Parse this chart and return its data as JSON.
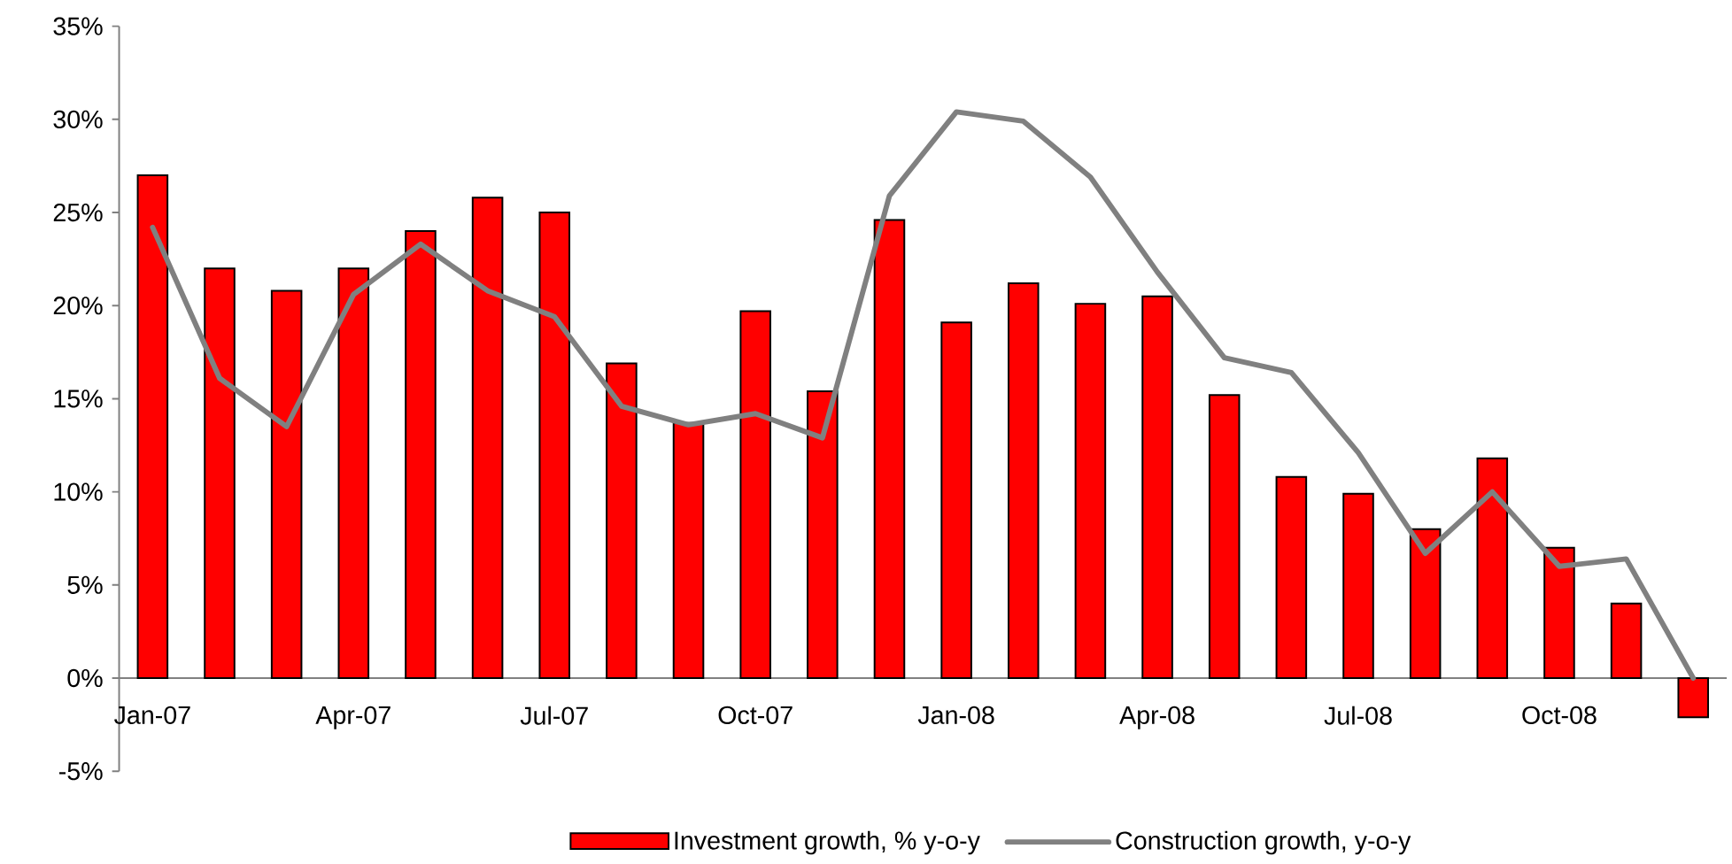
{
  "chart_data": {
    "type": "bar",
    "categories": [
      "Jan-07",
      null,
      null,
      "Apr-07",
      null,
      null,
      "Jul-07",
      null,
      null,
      "Oct-07",
      null,
      null,
      "Jan-08",
      null,
      null,
      "Apr-08",
      null,
      null,
      "Jul-08",
      null,
      null,
      "Oct-08",
      null,
      null
    ],
    "series": [
      {
        "name": "Investment growth, % y-o-y",
        "color": "#ff0000",
        "values": [
          27.0,
          22.0,
          20.8,
          22.0,
          24.0,
          25.8,
          25.0,
          16.9,
          13.7,
          19.7,
          15.4,
          24.6,
          19.1,
          21.2,
          20.1,
          20.5,
          15.2,
          10.8,
          9.9,
          8.0,
          11.8,
          7.0,
          4.0,
          -2.1
        ]
      },
      {
        "name": "Construction growth, y-o-y",
        "type": "line",
        "color": "#808080",
        "values": [
          24.2,
          16.1,
          13.5,
          20.6,
          23.3,
          20.8,
          19.4,
          14.6,
          13.6,
          14.2,
          12.9,
          25.9,
          30.4,
          29.9,
          26.9,
          21.8,
          17.2,
          16.4,
          12.1,
          6.7,
          10.0,
          6.0,
          6.4,
          0.0
        ]
      }
    ],
    "ylim": [
      -5,
      35
    ],
    "yticks": [
      {
        "value": -5,
        "label": "-5%"
      },
      {
        "value": 0,
        "label": "0%"
      },
      {
        "value": 5,
        "label": "5%"
      },
      {
        "value": 10,
        "label": "10%"
      },
      {
        "value": 15,
        "label": "15%"
      },
      {
        "value": 20,
        "label": "20%"
      },
      {
        "value": 25,
        "label": "25%"
      },
      {
        "value": 30,
        "label": "30%"
      },
      {
        "value": 35,
        "label": "35%"
      }
    ],
    "legend": "bottom"
  }
}
